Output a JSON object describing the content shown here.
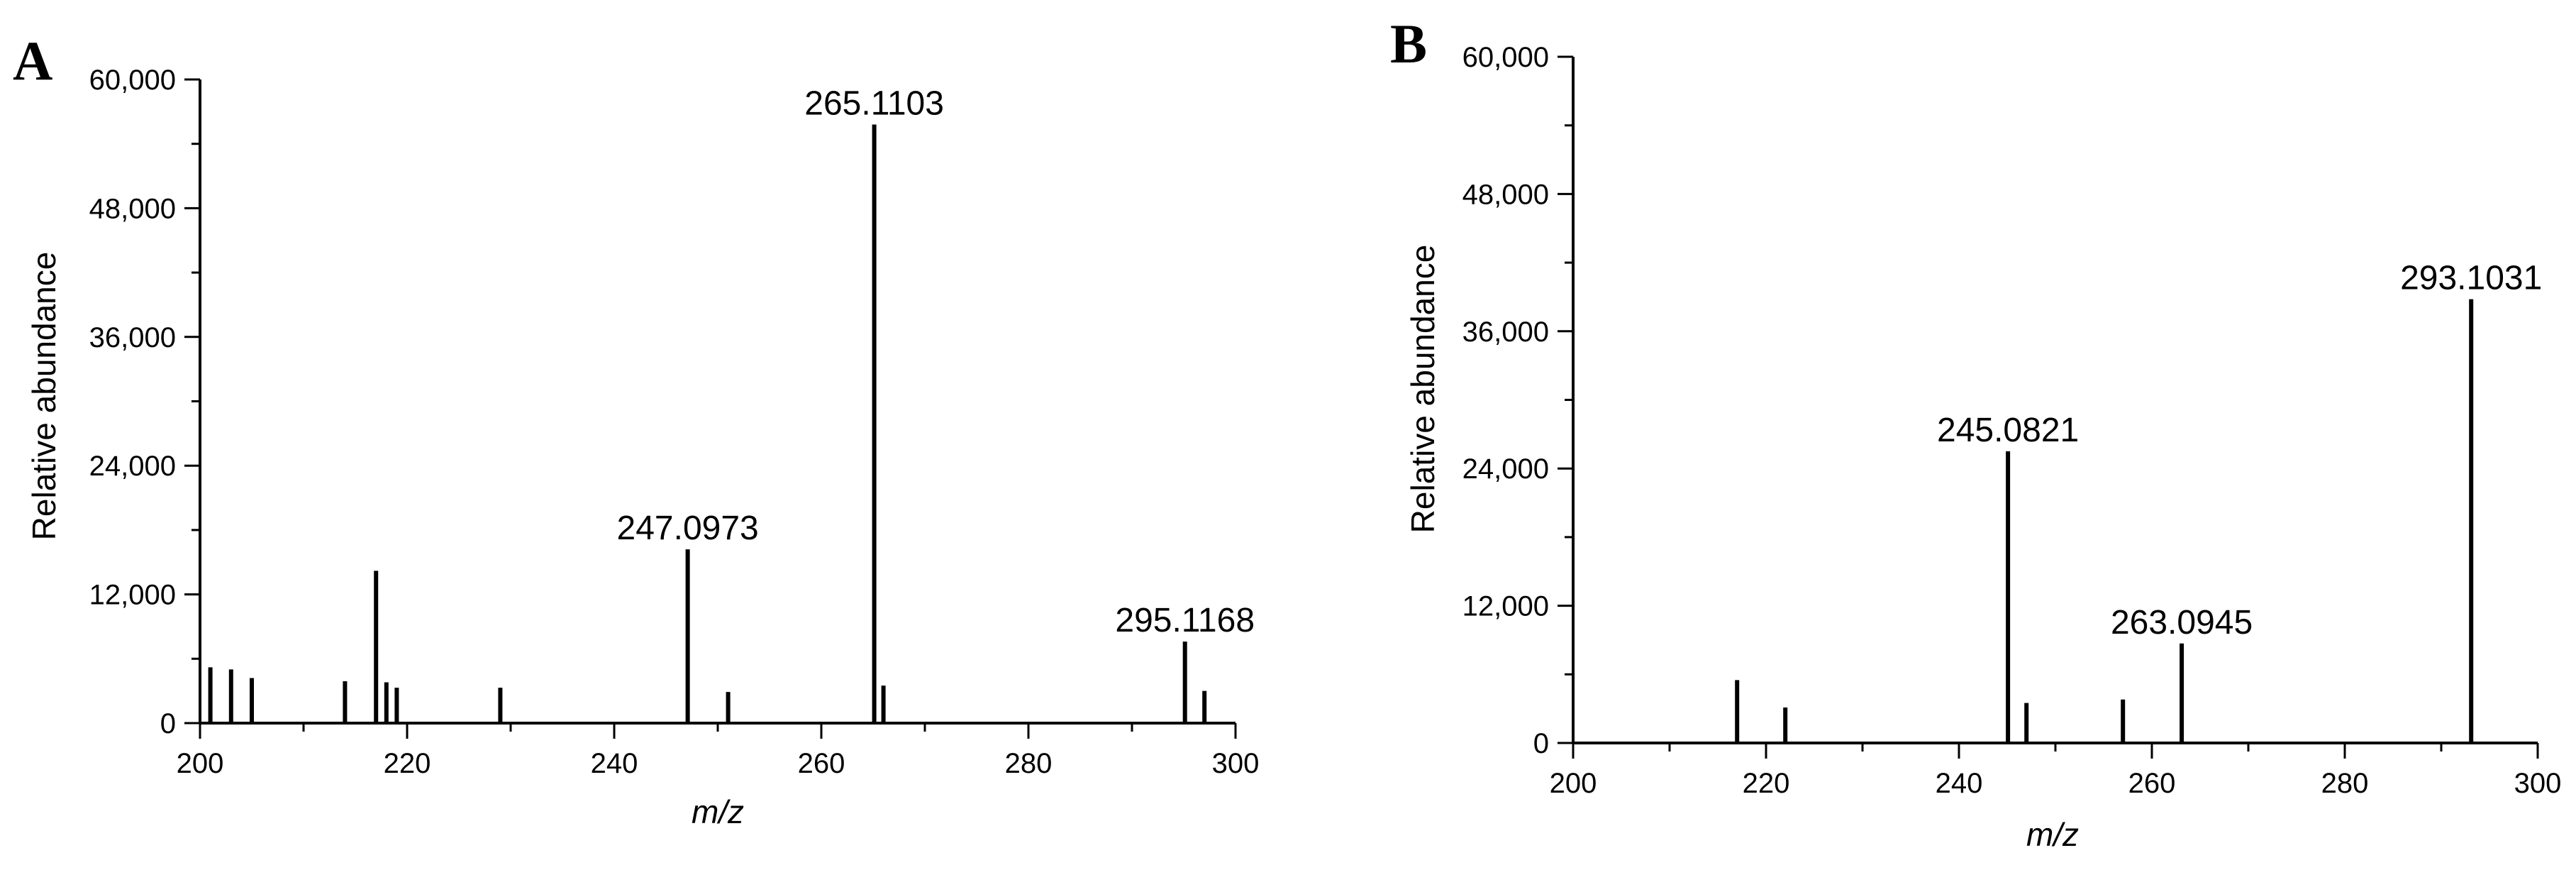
{
  "chart_data": [
    {
      "type": "bar",
      "panel_label": "A",
      "xlabel": "m/z",
      "ylabel": "Relative abundance",
      "xlim": [
        200,
        300
      ],
      "ylim": [
        0,
        60000
      ],
      "xticks": [
        200,
        220,
        240,
        260,
        280,
        300
      ],
      "xtick_labels": [
        "200",
        "220",
        "240",
        "260",
        "280",
        "300"
      ],
      "yticks": [
        0,
        12000,
        24000,
        36000,
        48000,
        60000
      ],
      "ytick_labels": [
        "0",
        "12,000",
        "24,000",
        "36,000",
        "48,000",
        "60,000"
      ],
      "peaks": [
        {
          "mz": 201,
          "abundance": 5200
        },
        {
          "mz": 203,
          "abundance": 5000
        },
        {
          "mz": 205,
          "abundance": 4200
        },
        {
          "mz": 214,
          "abundance": 3900
        },
        {
          "mz": 217,
          "abundance": 14200
        },
        {
          "mz": 218,
          "abundance": 3800
        },
        {
          "mz": 219,
          "abundance": 3300
        },
        {
          "mz": 229,
          "abundance": 3300
        },
        {
          "mz": 247.0973,
          "abundance": 16200,
          "label": "247.0973"
        },
        {
          "mz": 251,
          "abundance": 2900
        },
        {
          "mz": 265.1103,
          "abundance": 55800,
          "label": "265.1103"
        },
        {
          "mz": 266,
          "abundance": 3500
        },
        {
          "mz": 295.1168,
          "abundance": 7600,
          "label": "295.1168"
        },
        {
          "mz": 297,
          "abundance": 3000
        }
      ]
    },
    {
      "type": "bar",
      "panel_label": "B",
      "xlabel": "m/z",
      "ylabel": "Relative abundance",
      "xlim": [
        200,
        300
      ],
      "ylim": [
        0,
        60000
      ],
      "xticks": [
        200,
        220,
        240,
        260,
        280,
        300
      ],
      "xtick_labels": [
        "200",
        "220",
        "240",
        "260",
        "280",
        "300"
      ],
      "yticks": [
        0,
        12000,
        24000,
        36000,
        48000,
        60000
      ],
      "ytick_labels": [
        "0",
        "12,000",
        "24,000",
        "36,000",
        "48,000",
        "60,000"
      ],
      "peaks": [
        {
          "mz": 217,
          "abundance": 5500
        },
        {
          "mz": 222,
          "abundance": 3100
        },
        {
          "mz": 245.0821,
          "abundance": 25500,
          "label": "245.0821"
        },
        {
          "mz": 247,
          "abundance": 3500
        },
        {
          "mz": 257,
          "abundance": 3800
        },
        {
          "mz": 263.0945,
          "abundance": 8700,
          "label": "263.0945"
        },
        {
          "mz": 293.1031,
          "abundance": 38800,
          "label": "293.1031"
        }
      ]
    }
  ]
}
